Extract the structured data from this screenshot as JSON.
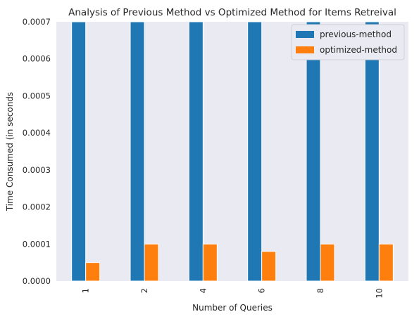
{
  "chart_data": {
    "type": "bar",
    "title": "Analysis of Previous Method vs Optimized Method for Items Retreival",
    "xlabel": "Number of Queries",
    "ylabel": "Time Consumed (in seconds",
    "categories": [
      "1",
      "2",
      "4",
      "6",
      "8",
      "10"
    ],
    "ylim": [
      0,
      0.0007
    ],
    "yticks": [
      "0.0000",
      "0.0001",
      "0.0002",
      "0.0003",
      "0.0004",
      "0.0005",
      "0.0006",
      "0.0007"
    ],
    "series": [
      {
        "name": "previous-method",
        "color": "#1f77b4",
        "values": [
          0.0007,
          0.0007,
          0.0007,
          0.0007,
          0.0007,
          0.0007
        ],
        "clipped_above_ylim": true
      },
      {
        "name": "optimized-method",
        "color": "#ff7f0e",
        "values": [
          5e-05,
          0.0001,
          0.0001,
          8e-05,
          0.0001,
          0.0001
        ]
      }
    ],
    "legend": "top-right",
    "grid": false,
    "background": "#eaeaf2"
  }
}
